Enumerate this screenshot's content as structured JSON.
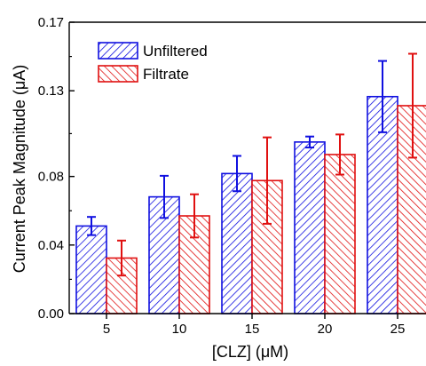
{
  "chart_data": {
    "type": "bar",
    "title": "",
    "xlabel": "[CLZ] (μM)",
    "ylabel": "Current Peak Magnitude (μA)",
    "categories": [
      "5",
      "10",
      "15",
      "20",
      "25"
    ],
    "ylim": [
      0,
      0.17
    ],
    "yticks": [
      0,
      0.04,
      0.08,
      0.13,
      0.17
    ],
    "ytick_labels": [
      "0.00",
      "0.04",
      "0.08",
      "0.13",
      "0.17"
    ],
    "series": [
      {
        "name": "Unfiltered",
        "color": "#1010e0",
        "hatch": "diagonal-up",
        "values": [
          0.0511,
          0.0681,
          0.0817,
          0.1001,
          0.1266
        ],
        "errors": [
          0.0053,
          0.0123,
          0.0103,
          0.0032,
          0.0208
        ]
      },
      {
        "name": "Filtrate",
        "color": "#e01010",
        "hatch": "diagonal-down",
        "values": [
          0.0324,
          0.057,
          0.0776,
          0.0928,
          0.1213
        ],
        "errors": [
          0.0102,
          0.0126,
          0.0252,
          0.0117,
          0.0303
        ]
      }
    ],
    "legend_position": "top-left",
    "grid": false
  }
}
